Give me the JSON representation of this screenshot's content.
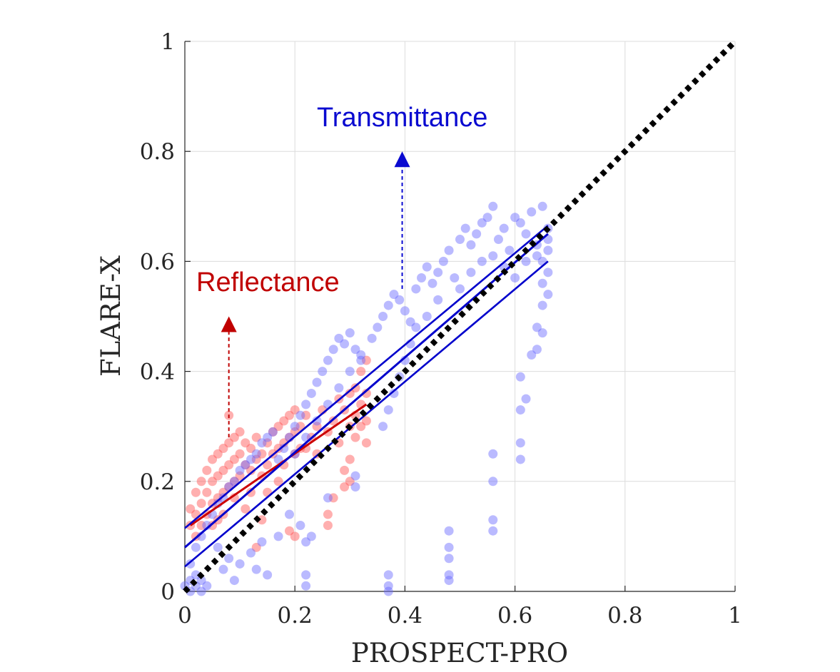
{
  "chart_data": {
    "type": "scatter",
    "xlabel": "PROSPECT-PRO",
    "ylabel": "FLARE-X",
    "xlim": [
      0,
      1
    ],
    "ylim": [
      0,
      1
    ],
    "xticks": [
      0,
      0.2,
      0.4,
      0.6,
      0.8,
      1
    ],
    "yticks": [
      0,
      0.2,
      0.4,
      0.6,
      0.8,
      1
    ],
    "xtick_labels": [
      "0",
      "0.2",
      "0.4",
      "0.6",
      "0.8",
      "1"
    ],
    "ytick_labels": [
      "0",
      "0.2",
      "0.4",
      "0.6",
      "0.8",
      "1"
    ],
    "grid": true,
    "one_to_one_line": {
      "x": [
        0,
        1
      ],
      "y": [
        0,
        1
      ],
      "style": "dotted",
      "color": "#000000"
    },
    "annotations": [
      {
        "text": "Reflectance",
        "color": "#c00000",
        "arrow_x": 0.08,
        "arrow_from_y": 0.28,
        "arrow_to_y": 0.5
      },
      {
        "text": "Transmittance",
        "color": "#0a0ad0",
        "arrow_x": 0.395,
        "arrow_from_y": 0.55,
        "arrow_to_y": 0.8
      }
    ],
    "series": [
      {
        "name": "Reflectance",
        "color": "#ff4d4d",
        "line_color": "#cc0000",
        "fit": {
          "x": [
            0.01,
            0.33
          ],
          "y": [
            0.12,
            0.34
          ]
        },
        "points": [
          [
            0.01,
            0.12
          ],
          [
            0.01,
            0.15
          ],
          [
            0.02,
            0.1
          ],
          [
            0.02,
            0.18
          ],
          [
            0.02,
            0.14
          ],
          [
            0.03,
            0.2
          ],
          [
            0.03,
            0.16
          ],
          [
            0.03,
            0.12
          ],
          [
            0.04,
            0.22
          ],
          [
            0.04,
            0.18
          ],
          [
            0.04,
            0.14
          ],
          [
            0.05,
            0.24
          ],
          [
            0.05,
            0.2
          ],
          [
            0.05,
            0.16
          ],
          [
            0.06,
            0.25
          ],
          [
            0.06,
            0.21
          ],
          [
            0.06,
            0.17
          ],
          [
            0.07,
            0.26
          ],
          [
            0.07,
            0.22
          ],
          [
            0.07,
            0.18
          ],
          [
            0.08,
            0.27
          ],
          [
            0.08,
            0.23
          ],
          [
            0.08,
            0.19
          ],
          [
            0.08,
            0.32
          ],
          [
            0.09,
            0.28
          ],
          [
            0.09,
            0.24
          ],
          [
            0.09,
            0.2
          ],
          [
            0.1,
            0.29
          ],
          [
            0.1,
            0.25
          ],
          [
            0.1,
            0.21
          ],
          [
            0.11,
            0.27
          ],
          [
            0.11,
            0.23
          ],
          [
            0.12,
            0.26
          ],
          [
            0.12,
            0.22
          ],
          [
            0.13,
            0.28
          ],
          [
            0.13,
            0.24
          ],
          [
            0.14,
            0.25
          ],
          [
            0.14,
            0.21
          ],
          [
            0.15,
            0.27
          ],
          [
            0.15,
            0.23
          ],
          [
            0.16,
            0.29
          ],
          [
            0.16,
            0.25
          ],
          [
            0.17,
            0.3
          ],
          [
            0.17,
            0.26
          ],
          [
            0.18,
            0.31
          ],
          [
            0.18,
            0.27
          ],
          [
            0.18,
            0.23
          ],
          [
            0.19,
            0.32
          ],
          [
            0.19,
            0.28
          ],
          [
            0.2,
            0.33
          ],
          [
            0.2,
            0.29
          ],
          [
            0.2,
            0.25
          ],
          [
            0.21,
            0.3
          ],
          [
            0.21,
            0.26
          ],
          [
            0.19,
            0.11
          ],
          [
            0.2,
            0.1
          ],
          [
            0.14,
            0.13
          ],
          [
            0.13,
            0.08
          ],
          [
            0.22,
            0.32
          ],
          [
            0.23,
            0.28
          ],
          [
            0.24,
            0.3
          ],
          [
            0.25,
            0.33
          ],
          [
            0.26,
            0.29
          ],
          [
            0.27,
            0.31
          ],
          [
            0.27,
            0.17
          ],
          [
            0.26,
            0.14
          ],
          [
            0.26,
            0.12
          ],
          [
            0.28,
            0.35
          ],
          [
            0.28,
            0.27
          ],
          [
            0.29,
            0.33
          ],
          [
            0.29,
            0.19
          ],
          [
            0.3,
            0.3
          ],
          [
            0.3,
            0.36
          ],
          [
            0.3,
            0.2
          ],
          [
            0.3,
            0.24
          ],
          [
            0.31,
            0.37
          ],
          [
            0.31,
            0.32
          ],
          [
            0.31,
            0.28
          ],
          [
            0.32,
            0.4
          ],
          [
            0.32,
            0.34
          ],
          [
            0.32,
            0.3
          ],
          [
            0.33,
            0.42
          ],
          [
            0.33,
            0.36
          ],
          [
            0.33,
            0.31
          ],
          [
            0.33,
            0.27
          ],
          [
            0.29,
            0.22
          ],
          [
            0.12,
            0.18
          ],
          [
            0.11,
            0.15
          ],
          [
            0.09,
            0.17
          ],
          [
            0.07,
            0.14
          ],
          [
            0.05,
            0.12
          ],
          [
            0.06,
            0.13
          ],
          [
            0.15,
            0.18
          ],
          [
            0.17,
            0.2
          ],
          [
            0.22,
            0.26
          ],
          [
            0.24,
            0.25
          ]
        ]
      },
      {
        "name": "Transmittance",
        "color": "#6666ff",
        "line_color": "#0000cc",
        "fit": {
          "x": [
            0.0,
            0.66
          ],
          "y": [
            0.08,
            0.65
          ]
        },
        "fit_bounds": [
          {
            "x": [
              0.0,
              0.66
            ],
            "y": [
              0.115,
              0.665
            ]
          },
          {
            "x": [
              0.0,
              0.66
            ],
            "y": [
              0.045,
              0.6
            ]
          }
        ],
        "points": [
          [
            0.0,
            0.01
          ],
          [
            0.01,
            0.02
          ],
          [
            0.01,
            0.0
          ],
          [
            0.02,
            0.01
          ],
          [
            0.02,
            0.03
          ],
          [
            0.03,
            0.0
          ],
          [
            0.03,
            0.02
          ],
          [
            0.04,
            0.01
          ],
          [
            0.01,
            0.05
          ],
          [
            0.02,
            0.08
          ],
          [
            0.03,
            0.1
          ],
          [
            0.04,
            0.12
          ],
          [
            0.05,
            0.14
          ],
          [
            0.06,
            0.16
          ],
          [
            0.07,
            0.17
          ],
          [
            0.08,
            0.19
          ],
          [
            0.09,
            0.2
          ],
          [
            0.1,
            0.22
          ],
          [
            0.11,
            0.23
          ],
          [
            0.12,
            0.24
          ],
          [
            0.13,
            0.25
          ],
          [
            0.14,
            0.27
          ],
          [
            0.15,
            0.28
          ],
          [
            0.16,
            0.29
          ],
          [
            0.06,
            0.08
          ],
          [
            0.07,
            0.04
          ],
          [
            0.08,
            0.06
          ],
          [
            0.09,
            0.02
          ],
          [
            0.1,
            0.05
          ],
          [
            0.12,
            0.07
          ],
          [
            0.13,
            0.04
          ],
          [
            0.14,
            0.09
          ],
          [
            0.15,
            0.03
          ],
          [
            0.17,
            0.1
          ],
          [
            0.19,
            0.14
          ],
          [
            0.21,
            0.12
          ],
          [
            0.22,
            0.09
          ],
          [
            0.22,
            0.03
          ],
          [
            0.22,
            0.01
          ],
          [
            0.23,
            0.1
          ],
          [
            0.17,
            0.24
          ],
          [
            0.18,
            0.26
          ],
          [
            0.19,
            0.28
          ],
          [
            0.2,
            0.3
          ],
          [
            0.21,
            0.32
          ],
          [
            0.22,
            0.34
          ],
          [
            0.23,
            0.36
          ],
          [
            0.24,
            0.38
          ],
          [
            0.25,
            0.4
          ],
          [
            0.26,
            0.42
          ],
          [
            0.27,
            0.44
          ],
          [
            0.28,
            0.46
          ],
          [
            0.29,
            0.45
          ],
          [
            0.3,
            0.47
          ],
          [
            0.31,
            0.44
          ],
          [
            0.32,
            0.42
          ],
          [
            0.2,
            0.25
          ],
          [
            0.22,
            0.28
          ],
          [
            0.24,
            0.31
          ],
          [
            0.26,
            0.34
          ],
          [
            0.28,
            0.37
          ],
          [
            0.3,
            0.4
          ],
          [
            0.32,
            0.43
          ],
          [
            0.34,
            0.46
          ],
          [
            0.35,
            0.48
          ],
          [
            0.36,
            0.5
          ],
          [
            0.37,
            0.52
          ],
          [
            0.38,
            0.54
          ],
          [
            0.39,
            0.53
          ],
          [
            0.4,
            0.51
          ],
          [
            0.41,
            0.49
          ],
          [
            0.42,
            0.55
          ],
          [
            0.43,
            0.57
          ],
          [
            0.44,
            0.59
          ],
          [
            0.45,
            0.56
          ],
          [
            0.46,
            0.58
          ],
          [
            0.47,
            0.6
          ],
          [
            0.48,
            0.62
          ],
          [
            0.49,
            0.57
          ],
          [
            0.5,
            0.64
          ],
          [
            0.51,
            0.66
          ],
          [
            0.52,
            0.63
          ],
          [
            0.53,
            0.65
          ],
          [
            0.54,
            0.67
          ],
          [
            0.55,
            0.68
          ],
          [
            0.56,
            0.7
          ],
          [
            0.57,
            0.64
          ],
          [
            0.58,
            0.66
          ],
          [
            0.59,
            0.62
          ],
          [
            0.6,
            0.68
          ],
          [
            0.61,
            0.67
          ],
          [
            0.62,
            0.65
          ],
          [
            0.63,
            0.69
          ],
          [
            0.64,
            0.63
          ],
          [
            0.65,
            0.7
          ],
          [
            0.66,
            0.62
          ],
          [
            0.65,
            0.6
          ],
          [
            0.66,
            0.58
          ],
          [
            0.65,
            0.56
          ],
          [
            0.66,
            0.54
          ],
          [
            0.65,
            0.52
          ],
          [
            0.66,
            0.66
          ],
          [
            0.64,
            0.61
          ],
          [
            0.66,
            0.64
          ],
          [
            0.64,
            0.44
          ],
          [
            0.65,
            0.47
          ],
          [
            0.64,
            0.48
          ],
          [
            0.63,
            0.43
          ],
          [
            0.62,
            0.35
          ],
          [
            0.61,
            0.39
          ],
          [
            0.61,
            0.33
          ],
          [
            0.61,
            0.27
          ],
          [
            0.61,
            0.24
          ],
          [
            0.56,
            0.25
          ],
          [
            0.56,
            0.2
          ],
          [
            0.56,
            0.13
          ],
          [
            0.56,
            0.11
          ],
          [
            0.48,
            0.11
          ],
          [
            0.48,
            0.08
          ],
          [
            0.48,
            0.06
          ],
          [
            0.48,
            0.03
          ],
          [
            0.48,
            0.02
          ],
          [
            0.37,
            0.03
          ],
          [
            0.37,
            0.01
          ],
          [
            0.37,
            0.0
          ],
          [
            0.31,
            0.19
          ],
          [
            0.31,
            0.21
          ],
          [
            0.26,
            0.17
          ],
          [
            0.36,
            0.3
          ],
          [
            0.37,
            0.33
          ],
          [
            0.38,
            0.36
          ],
          [
            0.39,
            0.39
          ],
          [
            0.4,
            0.42
          ],
          [
            0.41,
            0.45
          ],
          [
            0.42,
            0.48
          ],
          [
            0.44,
            0.5
          ],
          [
            0.46,
            0.53
          ],
          [
            0.5,
            0.55
          ],
          [
            0.52,
            0.58
          ],
          [
            0.54,
            0.6
          ],
          [
            0.56,
            0.61
          ],
          [
            0.58,
            0.59
          ],
          [
            0.6,
            0.57
          ],
          [
            0.62,
            0.6
          ]
        ]
      }
    ]
  }
}
